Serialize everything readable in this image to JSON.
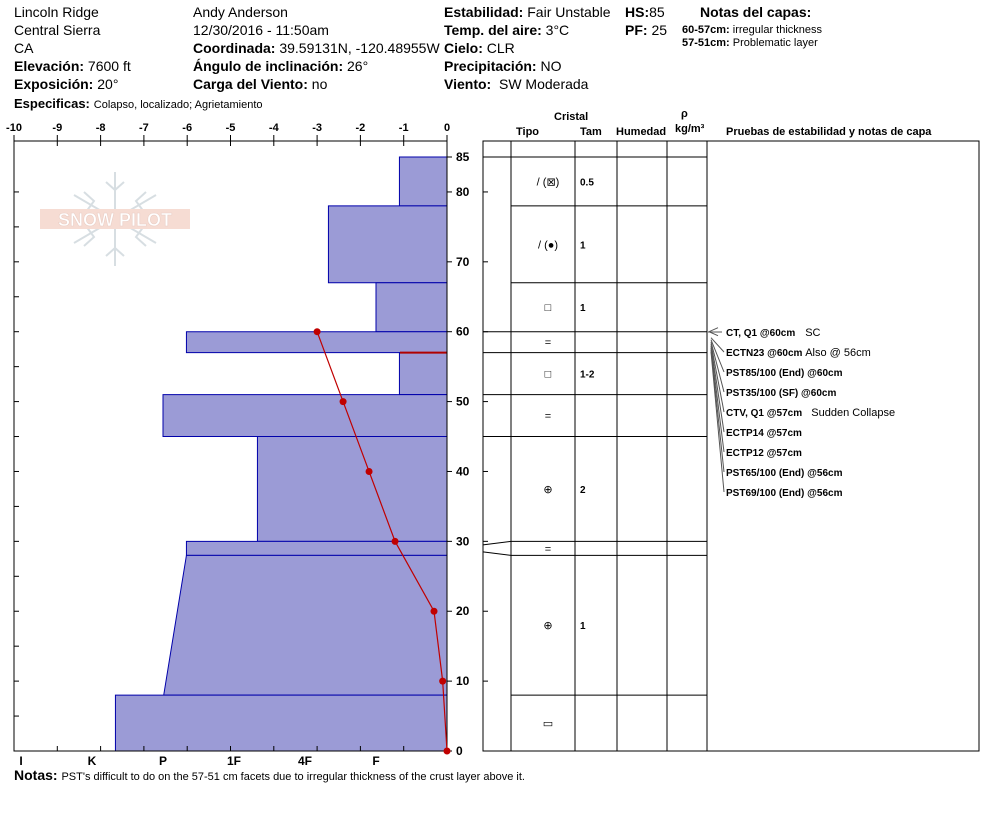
{
  "header": {
    "location": "Lincoln Ridge",
    "range": "Central Sierra",
    "state": "CA",
    "elev_label": "Elevación:",
    "elev_value": "7600 ft",
    "aspect_label": "Exposición:",
    "aspect_value": "20°",
    "observer": "Andy Anderson",
    "datetime": "12/30/2016 - 11:50am",
    "coord_label": "Coordinada:",
    "coord_value": "39.59131N, -120.48955W",
    "slope_label": "Ángulo de inclinación:",
    "slope_value": "26°",
    "wind_load_label": "Carga del Viento:",
    "wind_load_value": "no",
    "stability_label": "Estabilidad:",
    "stability_value": "Fair Unstable",
    "air_temp_label": "Temp. del aire:",
    "air_temp_value": "3°C",
    "sky_label": "Cielo:",
    "sky_value": "CLR",
    "precip_label": "Precipitación:",
    "precip_value": "NO",
    "wind_label": "Viento:",
    "wind_value": "SW Moderada",
    "hs_label": "HS:",
    "hs_value": "85",
    "pf_label": "PF:",
    "pf_value": "25",
    "layer_notes_title": "Notas del capas:",
    "layer_notes": [
      {
        "range": "60-57cm:",
        "text": "irregular thickness"
      },
      {
        "range": "57-51cm:",
        "text": "Problematic layer"
      }
    ],
    "specifics_label": "Especificas:",
    "specifics_value": "Colapso, localizado;  Agrietamiento"
  },
  "watermark": "SNOW PILOT",
  "columns": {
    "cristal": "Cristal",
    "tipo": "Tipo",
    "tam": "Tam",
    "humedad": "Humedad",
    "rho": "ρ",
    "density_unit": "kg/m³",
    "tests": "Pruebas de estabilidad y notas de capa"
  },
  "layers": [
    {
      "top": 85,
      "bottom": 78,
      "type": "/ (⊠)",
      "size": "0.5"
    },
    {
      "top": 78,
      "bottom": 67,
      "type": "/ (●)",
      "size": "1"
    },
    {
      "top": 67,
      "bottom": 60,
      "type": "□",
      "size": "1"
    },
    {
      "top": 60,
      "bottom": 57,
      "type": "=",
      "size": ""
    },
    {
      "top": 57,
      "bottom": 51,
      "type": "□",
      "size": "1-2"
    },
    {
      "top": 51,
      "bottom": 45,
      "type": "=",
      "size": ""
    },
    {
      "top": 45,
      "bottom": 30,
      "type": "⊕",
      "size": "2"
    },
    {
      "top": 30,
      "bottom": 28,
      "type": "=",
      "size": ""
    },
    {
      "top": 28,
      "bottom": 8,
      "type": "⊕",
      "size": "1"
    },
    {
      "top": 8,
      "bottom": 0,
      "type": "▭",
      "size": ""
    }
  ],
  "tests": [
    {
      "code": "CT, Q1 @60cm",
      "note": "SC"
    },
    {
      "code": "ECTN23 @60cm",
      "note": "Also @ 56cm"
    },
    {
      "code": "PST85/100 (End) @60cm",
      "note": ""
    },
    {
      "code": "PST35/100 (SF) @60cm",
      "note": ""
    },
    {
      "code": "CTV, Q1 @57cm",
      "note": "Sudden Collapse"
    },
    {
      "code": "ECTP14 @57cm",
      "note": ""
    },
    {
      "code": "ECTP12 @57cm",
      "note": ""
    },
    {
      "code": "PST65/100 (End) @56cm",
      "note": ""
    },
    {
      "code": "PST69/100 (End) @56cm",
      "note": ""
    }
  ],
  "footer": {
    "notes_label": "Notas:",
    "notes_value": "PST's difficult to do on the 57-51 cm facets due to irregular thickness of the crust layer above it."
  },
  "colors": {
    "hardness_fill": "#9b9bd6",
    "hardness_edge": "#0000aa",
    "temp_line": "#c00000"
  },
  "chart_data": {
    "type": "area",
    "title": "",
    "ylabel": "",
    "ylim": [
      0,
      85
    ],
    "temp_axis": {
      "label": "",
      "range": [
        -10,
        0
      ],
      "ticks": [
        "-10",
        "-9",
        "-8",
        "-7",
        "-6",
        "-5",
        "-4",
        "-3",
        "-2",
        "-1",
        "0"
      ]
    },
    "hardness_axis": {
      "labels": [
        "I",
        "K",
        "P",
        "1F",
        "4F",
        "F"
      ],
      "values": [
        6,
        5,
        4,
        3,
        2,
        1
      ]
    },
    "depth_ticks": [
      0,
      10,
      20,
      30,
      40,
      50,
      60,
      70,
      80,
      85
    ],
    "hardness_profile": [
      {
        "top": 85,
        "bottom": 78,
        "hardness_top": 0.67,
        "hardness_bottom": 0.67
      },
      {
        "top": 78,
        "bottom": 67,
        "hardness_top": 1.67,
        "hardness_bottom": 1.67
      },
      {
        "top": 67,
        "bottom": 60,
        "hardness_top": 1.0,
        "hardness_bottom": 1.0
      },
      {
        "top": 60,
        "bottom": 57,
        "hardness_top": 3.67,
        "hardness_bottom": 3.67
      },
      {
        "top": 57,
        "bottom": 51,
        "hardness_top": 0.67,
        "hardness_bottom": 0.67
      },
      {
        "top": 51,
        "bottom": 45,
        "hardness_top": 4.0,
        "hardness_bottom": 4.0
      },
      {
        "top": 45,
        "bottom": 30,
        "hardness_top": 2.67,
        "hardness_bottom": 2.67
      },
      {
        "top": 30,
        "bottom": 28,
        "hardness_top": 3.67,
        "hardness_bottom": 3.67
      },
      {
        "top": 28,
        "bottom": 8,
        "hardness_top": 3.67,
        "hardness_bottom": 3.99
      },
      {
        "top": 8,
        "bottom": 0,
        "hardness_top": 4.67,
        "hardness_bottom": 4.67
      }
    ],
    "temperature_profile": {
      "x": [
        -3.0,
        -2.4,
        -1.8,
        -1.2,
        -0.3,
        -0.1,
        0.0
      ],
      "y": [
        60,
        50,
        40,
        30,
        20,
        10,
        0
      ]
    },
    "problem_layer_depth": 57
  }
}
